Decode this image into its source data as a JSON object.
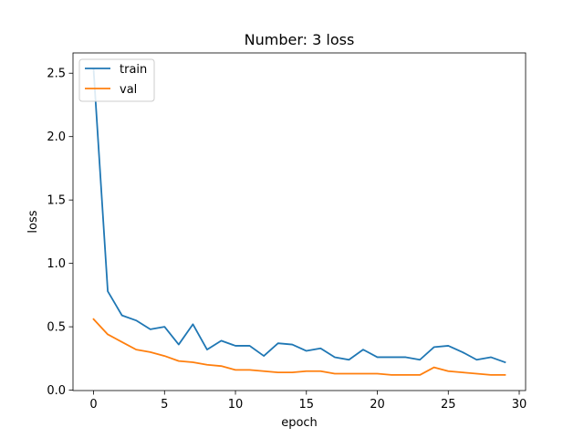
{
  "chart_data": {
    "type": "line",
    "title": "Number: 3 loss",
    "xlabel": "epoch",
    "ylabel": "loss",
    "xlim": [
      -1.45,
      30.45
    ],
    "ylim": [
      -0.003,
      2.66
    ],
    "xticks": [
      0,
      5,
      10,
      15,
      20,
      25,
      30
    ],
    "xtick_labels": [
      "0",
      "5",
      "10",
      "15",
      "20",
      "25",
      "30"
    ],
    "yticks": [
      0.0,
      0.5,
      1.0,
      1.5,
      2.0,
      2.5
    ],
    "ytick_labels": [
      "0.0",
      "0.5",
      "1.0",
      "1.5",
      "2.0",
      "2.5"
    ],
    "grid": false,
    "legend_position": "top-left",
    "x": [
      0,
      1,
      2,
      3,
      4,
      5,
      6,
      7,
      8,
      9,
      10,
      11,
      12,
      13,
      14,
      15,
      16,
      17,
      18,
      19,
      20,
      21,
      22,
      23,
      24,
      25,
      26,
      27,
      28,
      29
    ],
    "series": [
      {
        "name": "train",
        "color": "#1f77b4",
        "values": [
          2.53,
          0.78,
          0.59,
          0.55,
          0.48,
          0.5,
          0.36,
          0.52,
          0.32,
          0.39,
          0.35,
          0.35,
          0.27,
          0.37,
          0.36,
          0.31,
          0.33,
          0.26,
          0.24,
          0.32,
          0.26,
          0.26,
          0.26,
          0.24,
          0.34,
          0.35,
          0.3,
          0.24,
          0.26,
          0.22
        ]
      },
      {
        "name": "val",
        "color": "#ff7f0e",
        "values": [
          0.56,
          0.44,
          0.38,
          0.32,
          0.3,
          0.27,
          0.23,
          0.22,
          0.2,
          0.19,
          0.16,
          0.16,
          0.15,
          0.14,
          0.14,
          0.15,
          0.15,
          0.13,
          0.13,
          0.13,
          0.13,
          0.12,
          0.12,
          0.12,
          0.18,
          0.15,
          0.14,
          0.13,
          0.12,
          0.12
        ]
      }
    ]
  }
}
